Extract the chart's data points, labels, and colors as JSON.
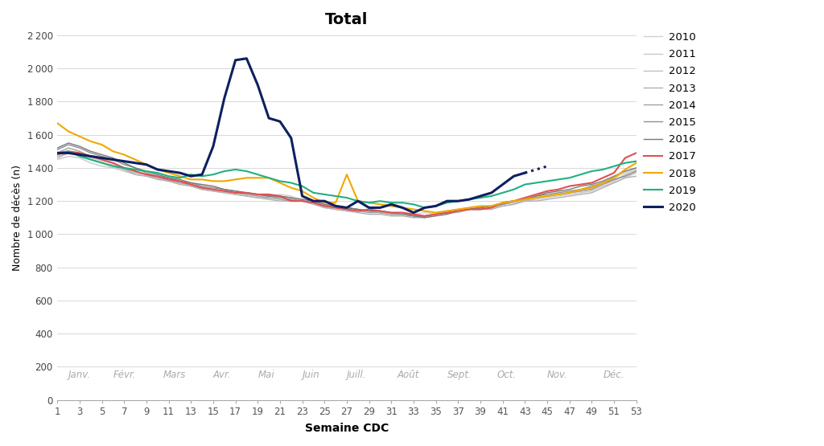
{
  "title": "Total",
  "xlabel": "Semaine CDC",
  "ylabel": "Nombre de décès (n)",
  "xlim": [
    1,
    53
  ],
  "ylim": [
    0,
    2200
  ],
  "yticks": [
    0,
    200,
    400,
    600,
    800,
    1000,
    1200,
    1400,
    1600,
    1800,
    2000,
    2200
  ],
  "xticks": [
    1,
    3,
    5,
    7,
    9,
    11,
    13,
    15,
    17,
    19,
    21,
    23,
    25,
    27,
    29,
    31,
    33,
    35,
    37,
    39,
    41,
    43,
    45,
    47,
    49,
    51,
    53
  ],
  "month_labels": [
    {
      "label": "Janv.",
      "x": 2.0
    },
    {
      "label": "Févr.",
      "x": 6.0
    },
    {
      "label": "Mars",
      "x": 10.5
    },
    {
      "label": "Avr.",
      "x": 15.0
    },
    {
      "label": "Mai",
      "x": 19.0
    },
    {
      "label": "Juin",
      "x": 23.0
    },
    {
      "label": "Juill.",
      "x": 27.0
    },
    {
      "label": "Août",
      "x": 31.5
    },
    {
      "label": "Sept.",
      "x": 36.0
    },
    {
      "label": "Oct.",
      "x": 40.5
    },
    {
      "label": "Nov.",
      "x": 45.0
    },
    {
      "label": "Déc.",
      "x": 50.0
    }
  ],
  "years": {
    "2010": {
      "color": "#d0d0d0",
      "lw": 1.0,
      "zorder": 1,
      "data": [
        1480,
        1500,
        1490,
        1460,
        1440,
        1430,
        1390,
        1370,
        1360,
        1340,
        1320,
        1310,
        1290,
        1280,
        1270,
        1260,
        1250,
        1240,
        1230,
        1230,
        1240,
        1230,
        1200,
        1190,
        1170,
        1160,
        1150,
        1140,
        1140,
        1140,
        1130,
        1130,
        1120,
        1130,
        1120,
        1140,
        1150,
        1160,
        1150,
        1160,
        1180,
        1190,
        1200,
        1220,
        1230,
        1240,
        1250,
        1260,
        1270,
        1310,
        1340,
        1370,
        1400
      ]
    },
    "2011": {
      "color": "#c8c8c8",
      "lw": 1.0,
      "zorder": 1,
      "data": [
        1450,
        1470,
        1460,
        1430,
        1410,
        1400,
        1380,
        1360,
        1350,
        1340,
        1320,
        1310,
        1290,
        1270,
        1260,
        1250,
        1240,
        1230,
        1220,
        1220,
        1220,
        1210,
        1200,
        1190,
        1160,
        1150,
        1140,
        1140,
        1140,
        1130,
        1120,
        1120,
        1100,
        1110,
        1120,
        1130,
        1140,
        1150,
        1150,
        1160,
        1170,
        1180,
        1200,
        1210,
        1220,
        1230,
        1240,
        1250,
        1260,
        1290,
        1310,
        1340,
        1370
      ]
    },
    "2012": {
      "color": "#c0c0c0",
      "lw": 1.0,
      "zorder": 1,
      "data": [
        1470,
        1490,
        1480,
        1450,
        1430,
        1420,
        1390,
        1370,
        1360,
        1340,
        1320,
        1310,
        1300,
        1280,
        1270,
        1260,
        1250,
        1240,
        1240,
        1230,
        1230,
        1220,
        1210,
        1200,
        1180,
        1160,
        1160,
        1150,
        1140,
        1130,
        1120,
        1120,
        1110,
        1110,
        1120,
        1130,
        1130,
        1150,
        1150,
        1160,
        1180,
        1190,
        1200,
        1220,
        1230,
        1240,
        1250,
        1260,
        1270,
        1300,
        1320,
        1360,
        1390
      ]
    },
    "2013": {
      "color": "#b0b0b0",
      "lw": 1.0,
      "zorder": 1,
      "data": [
        1460,
        1490,
        1480,
        1450,
        1430,
        1410,
        1390,
        1360,
        1350,
        1330,
        1320,
        1300,
        1290,
        1270,
        1260,
        1250,
        1240,
        1230,
        1220,
        1210,
        1200,
        1200,
        1200,
        1180,
        1160,
        1150,
        1140,
        1130,
        1120,
        1120,
        1110,
        1110,
        1100,
        1100,
        1120,
        1130,
        1140,
        1150,
        1150,
        1150,
        1170,
        1180,
        1200,
        1200,
        1210,
        1220,
        1230,
        1240,
        1250,
        1280,
        1310,
        1340,
        1350
      ]
    },
    "2014": {
      "color": "#a0a0a0",
      "lw": 1.0,
      "zorder": 1,
      "data": [
        1490,
        1520,
        1500,
        1470,
        1450,
        1430,
        1400,
        1380,
        1360,
        1340,
        1330,
        1310,
        1300,
        1280,
        1270,
        1260,
        1250,
        1240,
        1230,
        1220,
        1210,
        1200,
        1200,
        1190,
        1170,
        1160,
        1150,
        1140,
        1130,
        1130,
        1120,
        1120,
        1110,
        1110,
        1120,
        1130,
        1140,
        1150,
        1160,
        1170,
        1180,
        1200,
        1210,
        1220,
        1230,
        1240,
        1250,
        1260,
        1270,
        1300,
        1330,
        1350,
        1380
      ]
    },
    "2015": {
      "color": "#909090",
      "lw": 1.0,
      "zorder": 1,
      "data": [
        1510,
        1540,
        1520,
        1490,
        1470,
        1450,
        1420,
        1400,
        1370,
        1350,
        1340,
        1320,
        1310,
        1290,
        1280,
        1270,
        1260,
        1250,
        1240,
        1230,
        1220,
        1210,
        1200,
        1190,
        1170,
        1170,
        1160,
        1150,
        1140,
        1140,
        1130,
        1120,
        1110,
        1110,
        1120,
        1130,
        1140,
        1150,
        1160,
        1170,
        1180,
        1200,
        1210,
        1230,
        1240,
        1250,
        1260,
        1270,
        1290,
        1310,
        1330,
        1350,
        1380
      ]
    },
    "2016": {
      "color": "#787878",
      "lw": 1.0,
      "zorder": 1,
      "data": [
        1520,
        1550,
        1530,
        1500,
        1480,
        1460,
        1430,
        1400,
        1380,
        1360,
        1340,
        1330,
        1310,
        1300,
        1290,
        1270,
        1260,
        1250,
        1240,
        1230,
        1230,
        1220,
        1210,
        1200,
        1180,
        1170,
        1160,
        1150,
        1140,
        1140,
        1130,
        1130,
        1110,
        1100,
        1110,
        1120,
        1140,
        1150,
        1160,
        1170,
        1190,
        1200,
        1210,
        1230,
        1250,
        1260,
        1270,
        1290,
        1300,
        1320,
        1350,
        1380,
        1400
      ]
    },
    "2017": {
      "color": "#e05050",
      "lw": 1.5,
      "zorder": 3,
      "data": [
        1480,
        1500,
        1490,
        1470,
        1450,
        1430,
        1400,
        1380,
        1360,
        1350,
        1330,
        1320,
        1300,
        1280,
        1270,
        1260,
        1250,
        1250,
        1240,
        1240,
        1230,
        1200,
        1200,
        1190,
        1170,
        1160,
        1150,
        1140,
        1150,
        1140,
        1130,
        1130,
        1120,
        1110,
        1120,
        1130,
        1140,
        1150,
        1150,
        1160,
        1190,
        1200,
        1220,
        1240,
        1260,
        1270,
        1290,
        1300,
        1310,
        1340,
        1370,
        1460,
        1490
      ]
    },
    "2018": {
      "color": "#f0a800",
      "lw": 1.5,
      "zorder": 3,
      "data": [
        1670,
        1620,
        1590,
        1560,
        1540,
        1500,
        1480,
        1450,
        1420,
        1390,
        1370,
        1350,
        1330,
        1330,
        1320,
        1320,
        1330,
        1340,
        1340,
        1340,
        1310,
        1280,
        1260,
        1220,
        1190,
        1190,
        1360,
        1200,
        1190,
        1180,
        1170,
        1160,
        1150,
        1140,
        1130,
        1140,
        1150,
        1160,
        1170,
        1170,
        1190,
        1200,
        1210,
        1220,
        1230,
        1240,
        1250,
        1270,
        1280,
        1310,
        1340,
        1390,
        1430
      ]
    },
    "2019": {
      "color": "#20b080",
      "lw": 1.5,
      "zorder": 3,
      "data": [
        1490,
        1500,
        1470,
        1450,
        1430,
        1410,
        1400,
        1390,
        1380,
        1370,
        1350,
        1340,
        1360,
        1350,
        1360,
        1380,
        1390,
        1380,
        1360,
        1340,
        1320,
        1310,
        1290,
        1250,
        1240,
        1230,
        1220,
        1200,
        1190,
        1200,
        1190,
        1190,
        1180,
        1160,
        1170,
        1190,
        1200,
        1210,
        1220,
        1230,
        1250,
        1270,
        1300,
        1310,
        1320,
        1330,
        1340,
        1360,
        1380,
        1390,
        1410,
        1430,
        1440
      ]
    },
    "2020": {
      "color": "#0d2060",
      "lw": 2.2,
      "zorder": 5,
      "data": [
        1490,
        1490,
        1480,
        1470,
        1460,
        1450,
        1440,
        1430,
        1420,
        1390,
        1380,
        1370,
        1350,
        1360,
        1530,
        1820,
        2050,
        2060,
        1900,
        1700,
        1680,
        1580,
        1230,
        1200,
        1200,
        1170,
        1160,
        1200,
        1160,
        1160,
        1180,
        1160,
        1130,
        1160,
        1170,
        1200,
        1200,
        1210,
        1230,
        1250,
        1300,
        1350,
        1370,
        null,
        null,
        null,
        null,
        null,
        null,
        null,
        null,
        null,
        null
      ]
    }
  },
  "dotted_2020_weeks": [
    43,
    44,
    45
  ],
  "dotted_2020_vals": [
    1370,
    1390,
    1410
  ],
  "background_color": "#ffffff",
  "grid_color": "#d8d8d8",
  "legend_grey_colors": [
    "#d0d0d0",
    "#c8c8c8",
    "#c0c0c0",
    "#b0b0b0",
    "#a0a0a0",
    "#909090",
    "#787878"
  ],
  "legend_years_grey": [
    "2010",
    "2011",
    "2012",
    "2013",
    "2014",
    "2015",
    "2016"
  ],
  "legend_years_color": [
    "2017",
    "2018",
    "2019",
    "2020"
  ],
  "legend_colors_color": [
    "#e05050",
    "#f0a800",
    "#20b080",
    "#0d2060"
  ],
  "legend_lw_grey": 1.0,
  "legend_lw_color": [
    1.5,
    1.5,
    1.5,
    2.2
  ]
}
